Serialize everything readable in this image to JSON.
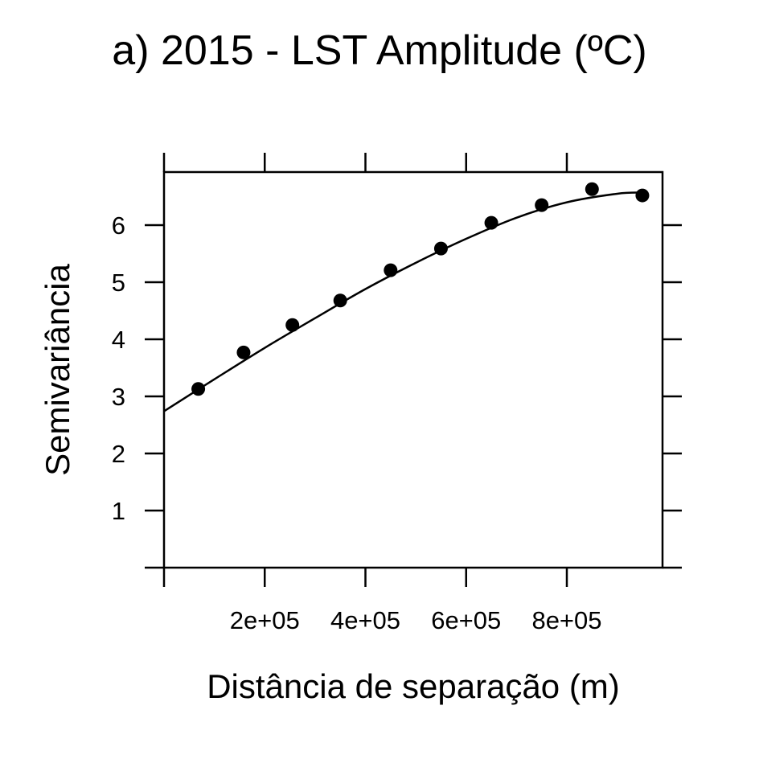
{
  "chart_data": {
    "type": "scatter",
    "title": "a) 2015 - LST Amplitude (ºC)",
    "xlabel": "Distância de separação (m)",
    "ylabel": "Semivariância",
    "xlim": [
      0,
      1000000
    ],
    "ylim": [
      0,
      6.9
    ],
    "x_ticks": [
      0,
      200000,
      400000,
      600000,
      800000
    ],
    "x_tick_labels": [
      "",
      "2e+05",
      "4e+05",
      "6e+05",
      "8e+05"
    ],
    "x_top_ticks": [
      0,
      200000,
      400000,
      600000,
      800000
    ],
    "y_ticks": [
      0,
      1,
      2,
      3,
      4,
      5,
      6
    ],
    "y_tick_labels": [
      "",
      "1",
      "2",
      "3",
      "4",
      "5",
      "6"
    ],
    "grid": false,
    "series": [
      {
        "type": "scatter",
        "x": [
          68000,
          158000,
          255000,
          350000,
          450000,
          550000,
          650000,
          750000,
          850000,
          950000
        ],
        "y": [
          3.13,
          3.77,
          4.25,
          4.68,
          5.21,
          5.59,
          6.04,
          6.35,
          6.63,
          6.52
        ]
      },
      {
        "type": "line",
        "x": [
          0,
          100000,
          200000,
          300000,
          400000,
          500000,
          600000,
          700000,
          800000,
          900000,
          950000
        ],
        "y": [
          2.74,
          3.3,
          3.85,
          4.37,
          4.88,
          5.34,
          5.76,
          6.13,
          6.4,
          6.55,
          6.57
        ]
      }
    ]
  }
}
